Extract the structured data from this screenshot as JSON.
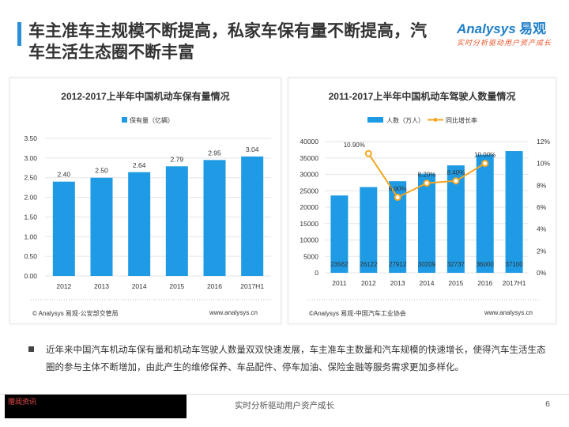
{
  "header": {
    "title": "车主准车主规模不断提高，私家车保有量不断提高，汽车生活生态圈不断丰富",
    "logo_main": "Analysys",
    "logo_cn": "易观",
    "logo_sub": "实时分析驱动用户资产成长",
    "accent": "#2b8fd6"
  },
  "chart_data": [
    {
      "type": "bar",
      "title": "2012-2017上半年中国机动车保有量情况",
      "legend": [
        "保有量（亿辆）"
      ],
      "categories": [
        "2012",
        "2013",
        "2014",
        "2015",
        "2016",
        "2017H1"
      ],
      "series": [
        {
          "name": "保有量（亿辆）",
          "values": [
            2.4,
            2.5,
            2.64,
            2.79,
            2.95,
            3.04
          ]
        }
      ],
      "data_labels": [
        "2.40",
        "2.50",
        "2.64",
        "2.79",
        "2.95",
        "3.04"
      ],
      "ylim": [
        0,
        3.5
      ],
      "yticks": [
        "0.00",
        "0.50",
        "1.00",
        "1.50",
        "2.00",
        "2.50",
        "3.00",
        "3.50"
      ],
      "source": "© Analysys 易观·公安部交管局",
      "site": "www.analysys.cn",
      "bar_color": "#1e9be4"
    },
    {
      "type": "bar+line",
      "title": "2011-2017上半年中国机动车驾驶人数量情况",
      "legend": [
        "人数（万人）",
        "同比增长率"
      ],
      "categories": [
        "2011",
        "2012",
        "2013",
        "2014",
        "2015",
        "2016",
        "2017H1"
      ],
      "series": [
        {
          "name": "人数（万人）",
          "values": [
            23562,
            26122,
            27912,
            30209,
            32737,
            36000,
            37100
          ]
        },
        {
          "name": "同比增长率",
          "values": [
            null,
            10.9,
            6.9,
            8.2,
            8.4,
            10.0,
            null
          ]
        }
      ],
      "bar_labels": [
        "23562",
        "26122",
        "27912",
        "30209",
        "32737",
        "36000",
        "37100"
      ],
      "line_labels": [
        "",
        "10.90%",
        "6.90%",
        "8.20%",
        "8.40%",
        "10.00%",
        ""
      ],
      "ylim": [
        0,
        40000
      ],
      "yticks": [
        "0",
        "5000",
        "10000",
        "15000",
        "20000",
        "25000",
        "30000",
        "35000",
        "40000"
      ],
      "y2lim": [
        0,
        12
      ],
      "y2ticks": [
        "0%",
        "2%",
        "4%",
        "6%",
        "8%",
        "10%",
        "12%"
      ],
      "source": "©Analysys 易观·中国汽车工业协会",
      "site": "www.analysys.cn",
      "bar_color": "#1e9be4",
      "line_color": "#f5a623"
    }
  ],
  "body": {
    "paragraph": "近年来中国汽车机动车保有量和机动车驾驶人数量双双快速发展，车主准车主数量和汽车规模的快速增长，使得汽车生活生态圈的参与主体不断增加，由此产生的维修保养、车品配件、停车加油、保险金融等服务需求更加多样化。"
  },
  "footer": {
    "center": "实时分析驱动用户资产成长",
    "page": "6",
    "badge": "赠阅资讯"
  }
}
